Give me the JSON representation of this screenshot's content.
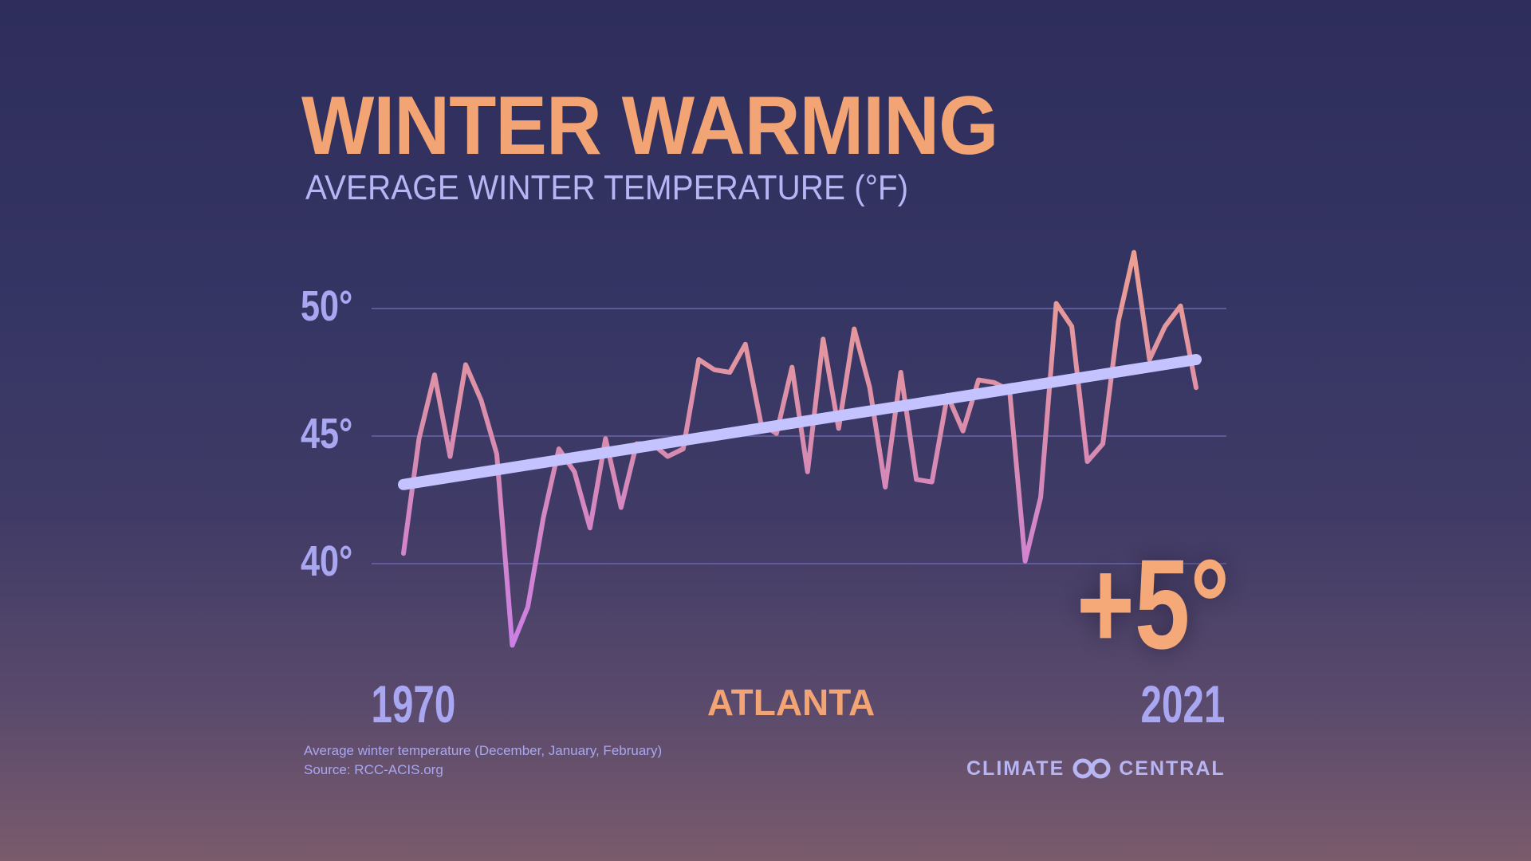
{
  "colors": {
    "title": "#f2a474",
    "subtitle": "#b8b5f5",
    "ticks": "#a9a6f2",
    "trend": "#c5c3ff",
    "line_top": "#eda08f",
    "line_bottom": "#cc7fe6",
    "grid": "#6a66aa"
  },
  "chart_data": {
    "type": "line",
    "title": "WINTER WARMING",
    "subtitle": "AVERAGE WINTER TEMPERATURE (°F)",
    "location": "ATLANTA",
    "x_start_label": "1970",
    "x_end_label": "2021",
    "ylim": [
      36,
      53
    ],
    "yticks": [
      {
        "value": 40,
        "label": "40°"
      },
      {
        "value": 45,
        "label": "45°"
      },
      {
        "value": 50,
        "label": "50°"
      }
    ],
    "grid": true,
    "x": [
      1970,
      1971,
      1972,
      1973,
      1974,
      1975,
      1976,
      1977,
      1978,
      1979,
      1980,
      1981,
      1982,
      1983,
      1984,
      1985,
      1986,
      1987,
      1988,
      1989,
      1990,
      1991,
      1992,
      1993,
      1994,
      1995,
      1996,
      1997,
      1998,
      1999,
      2000,
      2001,
      2002,
      2003,
      2004,
      2005,
      2006,
      2007,
      2008,
      2009,
      2010,
      2011,
      2012,
      2013,
      2014,
      2015,
      2016,
      2017,
      2018,
      2019,
      2020,
      2021
    ],
    "series": [
      {
        "values": [
          40.4,
          44.9,
          47.4,
          44.2,
          47.8,
          46.4,
          44.3,
          36.8,
          38.3,
          41.8,
          44.5,
          43.6,
          41.4,
          44.9,
          42.2,
          44.7,
          44.7,
          44.2,
          44.5,
          48.0,
          47.6,
          47.5,
          48.6,
          45.5,
          45.1,
          47.7,
          43.6,
          48.8,
          45.3,
          49.2,
          46.9,
          43.0,
          47.5,
          43.3,
          43.2,
          46.6,
          45.2,
          47.2,
          47.1,
          46.8,
          40.1,
          42.6,
          50.2,
          49.3,
          44.0,
          44.7,
          49.5,
          52.2,
          48.0,
          49.3,
          50.1,
          46.9
        ]
      },
      {
        "type": "trend",
        "values_at_ends": [
          43.1,
          48.0
        ]
      }
    ],
    "annotation": "+5°"
  },
  "footnote": {
    "line1": "Average winter temperature (December, January, February)",
    "line2": "Source: RCC-ACIS.org"
  },
  "logo": {
    "text_left": "CLIMATE",
    "text_right": "CENTRAL"
  }
}
